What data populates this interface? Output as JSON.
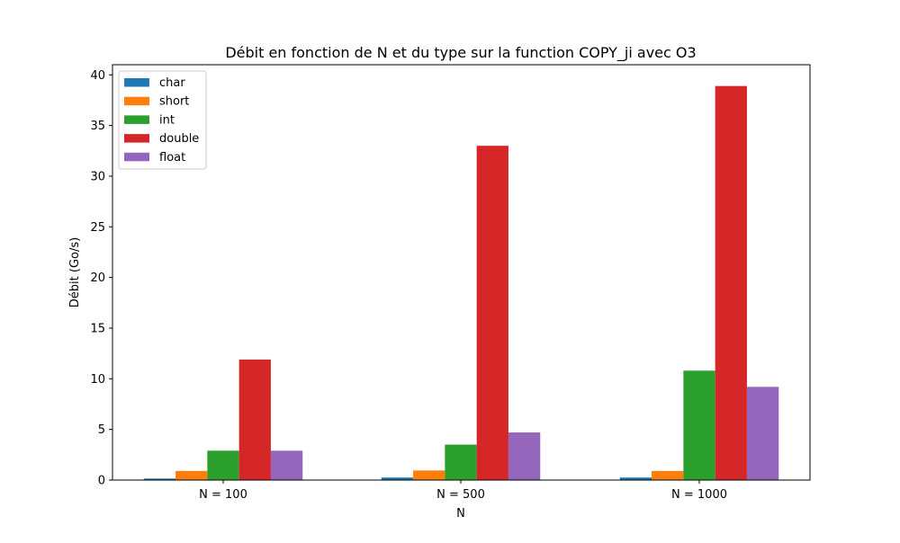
{
  "chart_data": {
    "type": "bar",
    "title": "Débit en fonction de N et du type sur la function COPY_ji avec O3",
    "xlabel": "N",
    "ylabel": "Débit (Go/s)",
    "categories": [
      "N = 100",
      "N = 500",
      "N = 1000"
    ],
    "ylim": [
      0,
      41
    ],
    "yticks": [
      0,
      5,
      10,
      15,
      20,
      25,
      30,
      35,
      40
    ],
    "grid": false,
    "legend_position": "top-left",
    "series": [
      {
        "name": "char",
        "color": "#1f77b4",
        "values": [
          0.15,
          0.25,
          0.25
        ]
      },
      {
        "name": "short",
        "color": "#ff7f0e",
        "values": [
          0.9,
          0.95,
          0.9
        ]
      },
      {
        "name": "int",
        "color": "#2ca02c",
        "values": [
          2.9,
          3.5,
          10.8
        ]
      },
      {
        "name": "double",
        "color": "#d62728",
        "values": [
          11.9,
          33.0,
          38.9
        ]
      },
      {
        "name": "float",
        "color": "#9467bd",
        "values": [
          2.9,
          4.7,
          9.2
        ]
      }
    ]
  }
}
